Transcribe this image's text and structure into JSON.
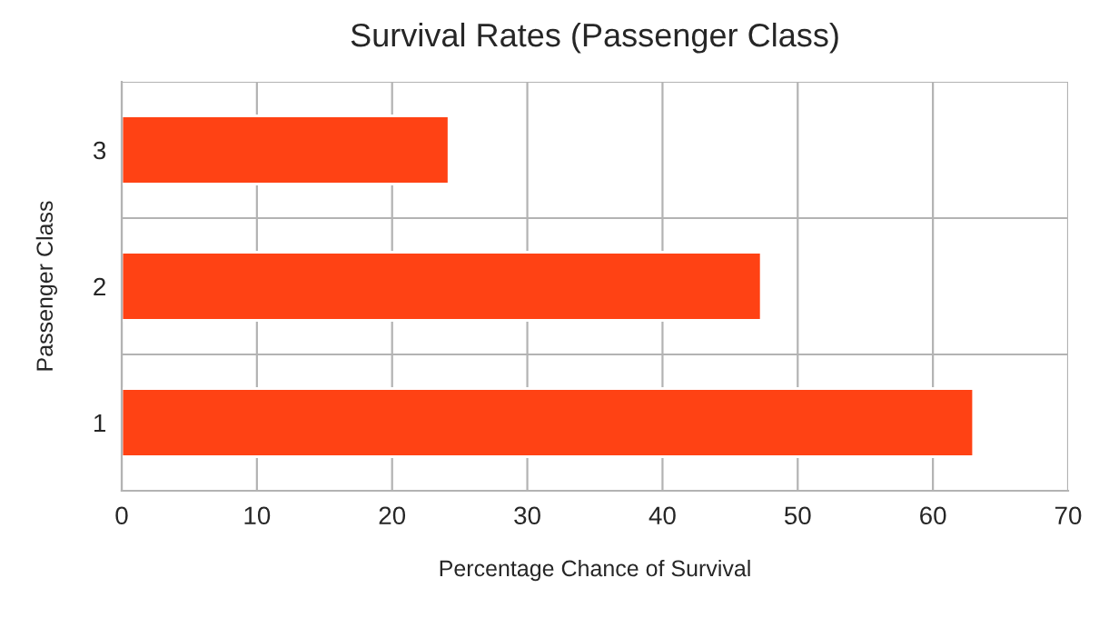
{
  "chart_data": {
    "type": "bar",
    "orientation": "horizontal",
    "title": "Survival Rates (Passenger Class)",
    "xlabel": "Percentage Chance of Survival",
    "ylabel": "Passenger Class",
    "categories": [
      "3",
      "2",
      "1"
    ],
    "values": [
      24.2,
      47.3,
      63
    ],
    "color": "#ff4214",
    "xlim": [
      0,
      70
    ],
    "xticks": [
      0,
      10,
      20,
      30,
      40,
      50,
      60,
      70
    ],
    "grid": true,
    "legend": false
  }
}
